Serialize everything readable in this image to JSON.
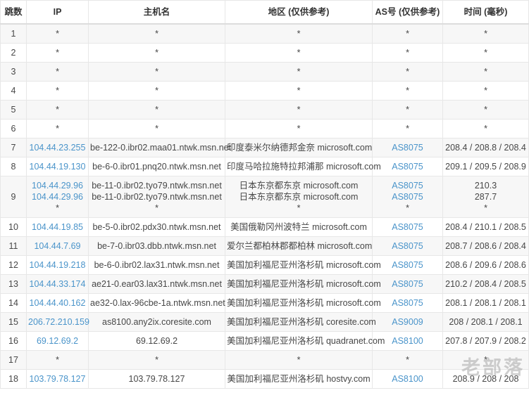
{
  "colors": {
    "link_blue": "#4a94ca",
    "stripe_gray": "#f7f7f7",
    "border_gray": "#e7e7e7",
    "header_text": "#333333",
    "cell_text": "#474747",
    "watermark_gray": "#a8a8a8"
  },
  "watermark": {
    "text": "老部落"
  },
  "table": {
    "headers": [
      "跳数",
      "IP",
      "主机名",
      "地区 (仅供参考)",
      "AS号 (仅供参考)",
      "时间 (毫秒)"
    ],
    "rows": [
      {
        "hop": "1",
        "ip": [
          "*"
        ],
        "host": [
          "*"
        ],
        "region": [
          "*"
        ],
        "as": [
          "*"
        ],
        "time": [
          "*"
        ]
      },
      {
        "hop": "2",
        "ip": [
          "*"
        ],
        "host": [
          "*"
        ],
        "region": [
          "*"
        ],
        "as": [
          "*"
        ],
        "time": [
          "*"
        ]
      },
      {
        "hop": "3",
        "ip": [
          "*"
        ],
        "host": [
          "*"
        ],
        "region": [
          "*"
        ],
        "as": [
          "*"
        ],
        "time": [
          "*"
        ]
      },
      {
        "hop": "4",
        "ip": [
          "*"
        ],
        "host": [
          "*"
        ],
        "region": [
          "*"
        ],
        "as": [
          "*"
        ],
        "time": [
          "*"
        ]
      },
      {
        "hop": "5",
        "ip": [
          "*"
        ],
        "host": [
          "*"
        ],
        "region": [
          "*"
        ],
        "as": [
          "*"
        ],
        "time": [
          "*"
        ]
      },
      {
        "hop": "6",
        "ip": [
          "*"
        ],
        "host": [
          "*"
        ],
        "region": [
          "*"
        ],
        "as": [
          "*"
        ],
        "time": [
          "*"
        ]
      },
      {
        "hop": "7",
        "ip": [
          "104.44.23.255"
        ],
        "host": [
          "be-122-0.ibr02.maa01.ntwk.msn.net"
        ],
        "region": [
          "印度泰米尔纳德邦金奈 microsoft.com"
        ],
        "as": [
          "AS8075"
        ],
        "time": [
          "208.4 / 208.8 / 208.4"
        ]
      },
      {
        "hop": "8",
        "ip": [
          "104.44.19.130"
        ],
        "host": [
          "be-6-0.ibr01.pnq20.ntwk.msn.net"
        ],
        "region": [
          "印度马哈拉施特拉邦浦那 microsoft.com"
        ],
        "as": [
          "AS8075"
        ],
        "time": [
          "209.1 / 209.5 / 208.9"
        ]
      },
      {
        "hop": "9",
        "ip": [
          "104.44.29.96",
          "104.44.29.96",
          "*"
        ],
        "host": [
          "be-11-0.ibr02.tyo79.ntwk.msn.net",
          "be-11-0.ibr02.tyo79.ntwk.msn.net",
          "*"
        ],
        "region": [
          "日本东京都东京 microsoft.com",
          "日本东京都东京 microsoft.com",
          "*"
        ],
        "as": [
          "AS8075",
          "AS8075",
          "*"
        ],
        "time": [
          "210.3",
          "287.7",
          "*"
        ]
      },
      {
        "hop": "10",
        "ip": [
          "104.44.19.85"
        ],
        "host": [
          "be-5-0.ibr02.pdx30.ntwk.msn.net"
        ],
        "region": [
          "美国俄勒冈州波特兰 microsoft.com"
        ],
        "as": [
          "AS8075"
        ],
        "time": [
          "208.4 / 210.1 / 208.5"
        ]
      },
      {
        "hop": "11",
        "ip": [
          "104.44.7.69"
        ],
        "host": [
          "be-7-0.ibr03.dbb.ntwk.msn.net"
        ],
        "region": [
          "爱尔兰都柏林郡都柏林 microsoft.com"
        ],
        "as": [
          "AS8075"
        ],
        "time": [
          "208.7 / 208.6 / 208.4"
        ]
      },
      {
        "hop": "12",
        "ip": [
          "104.44.19.218"
        ],
        "host": [
          "be-6-0.ibr02.lax31.ntwk.msn.net"
        ],
        "region": [
          "美国加利福尼亚州洛杉矶 microsoft.com"
        ],
        "as": [
          "AS8075"
        ],
        "time": [
          "208.6 / 209.6 / 208.6"
        ]
      },
      {
        "hop": "13",
        "ip": [
          "104.44.33.174"
        ],
        "host": [
          "ae21-0.ear03.lax31.ntwk.msn.net"
        ],
        "region": [
          "美国加利福尼亚州洛杉矶 microsoft.com"
        ],
        "as": [
          "AS8075"
        ],
        "time": [
          "210.2 / 208.4 / 208.5"
        ]
      },
      {
        "hop": "14",
        "ip": [
          "104.44.40.162"
        ],
        "host": [
          "ae32-0.lax-96cbe-1a.ntwk.msn.net"
        ],
        "region": [
          "美国加利福尼亚州洛杉矶 microsoft.com"
        ],
        "as": [
          "AS8075"
        ],
        "time": [
          "208.1 / 208.1 / 208.1"
        ]
      },
      {
        "hop": "15",
        "ip": [
          "206.72.210.159"
        ],
        "host": [
          "as8100.any2ix.coresite.com"
        ],
        "region": [
          "美国加利福尼亚州洛杉矶 coresite.com"
        ],
        "as": [
          "AS9009"
        ],
        "time": [
          "208 / 208.1 / 208.1"
        ]
      },
      {
        "hop": "16",
        "ip": [
          "69.12.69.2"
        ],
        "host": [
          "69.12.69.2"
        ],
        "region": [
          "美国加利福尼亚州洛杉矶 quadranet.com"
        ],
        "as": [
          "AS8100"
        ],
        "time": [
          "207.8 / 207.9 / 208.2"
        ]
      },
      {
        "hop": "17",
        "ip": [
          "*"
        ],
        "host": [
          "*"
        ],
        "region": [
          "*"
        ],
        "as": [
          "*"
        ],
        "time": [
          "*"
        ]
      },
      {
        "hop": "18",
        "ip": [
          "103.79.78.127"
        ],
        "host": [
          "103.79.78.127"
        ],
        "region": [
          "美国加利福尼亚州洛杉矶 hostvy.com"
        ],
        "as": [
          "AS8100"
        ],
        "time": [
          "208.9 / 208 / 208"
        ]
      }
    ]
  }
}
